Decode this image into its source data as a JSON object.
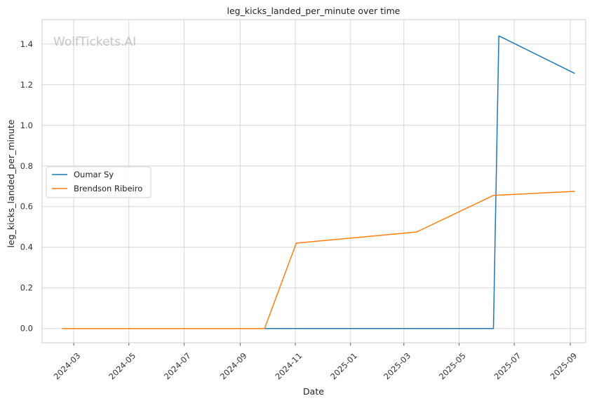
{
  "chart_data": {
    "type": "line",
    "title": "leg_kicks_landed_per_minute over time",
    "xlabel": "Date",
    "ylabel": "leg_kicks_landed_per_minute",
    "watermark": "WolfTickets.AI",
    "x_ticks": [
      "2024-03",
      "2024-05",
      "2024-07",
      "2024-09",
      "2024-11",
      "2025-01",
      "2025-03",
      "2025-05",
      "2025-07",
      "2025-09"
    ],
    "y_ticks": [
      "0.0",
      "0.2",
      "0.4",
      "0.6",
      "0.8",
      "1.0",
      "1.2",
      "1.4"
    ],
    "xlim": [
      "2024-01-26",
      "2025-09-18"
    ],
    "ylim": [
      -0.07,
      1.52
    ],
    "grid": true,
    "legend_position": "center-left",
    "series": [
      {
        "name": "Oumar Sy",
        "color": "#1f77b4",
        "points": [
          {
            "x": "2024-05-18",
            "y": 0.0
          },
          {
            "x": "2025-06-08",
            "y": 0.0
          },
          {
            "x": "2025-06-14",
            "y": 1.44
          },
          {
            "x": "2025-09-06",
            "y": 1.255
          }
        ]
      },
      {
        "name": "Brendson Ribeiro",
        "color": "#ff7f0e",
        "points": [
          {
            "x": "2024-02-17",
            "y": 0.0
          },
          {
            "x": "2024-09-28",
            "y": 0.0
          },
          {
            "x": "2024-11-02",
            "y": 0.42
          },
          {
            "x": "2025-03-15",
            "y": 0.475
          },
          {
            "x": "2025-06-08",
            "y": 0.655
          },
          {
            "x": "2025-09-06",
            "y": 0.675
          }
        ]
      }
    ]
  }
}
